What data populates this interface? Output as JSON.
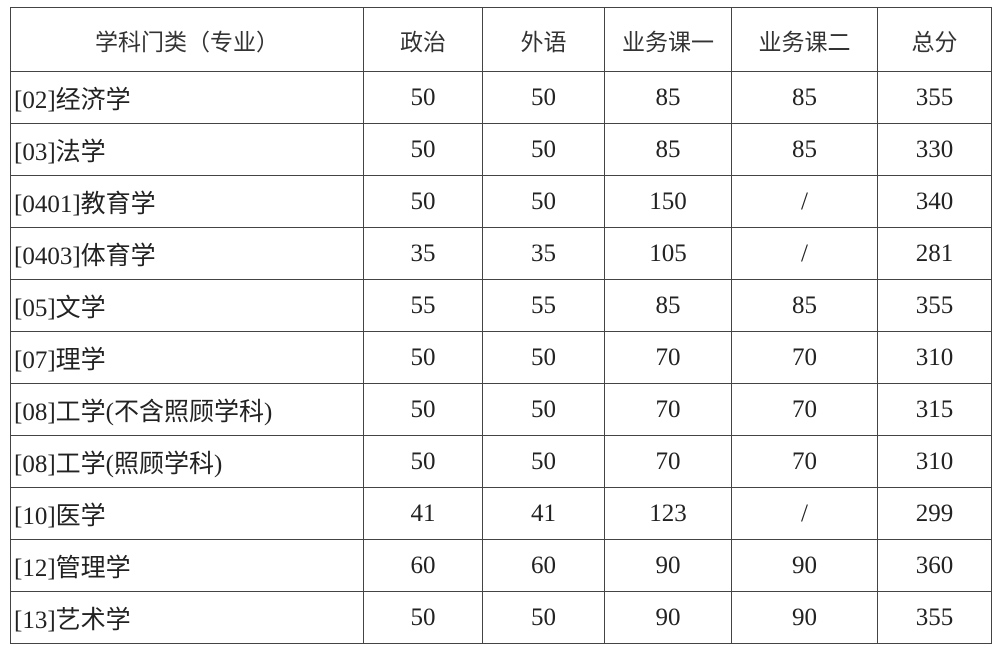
{
  "headers": [
    "学科门类（专业）",
    "政治",
    "外语",
    "业务课一",
    "业务课二",
    "总分"
  ],
  "rows": [
    {
      "name": "[02]经济学",
      "politics": "50",
      "foreign": "50",
      "course1": "85",
      "course2": "85",
      "total": "355"
    },
    {
      "name": "[03]法学",
      "politics": "50",
      "foreign": "50",
      "course1": "85",
      "course2": "85",
      "total": "330"
    },
    {
      "name": "[0401]教育学",
      "politics": "50",
      "foreign": "50",
      "course1": "150",
      "course2": "/",
      "total": "340"
    },
    {
      "name": "[0403]体育学",
      "politics": "35",
      "foreign": "35",
      "course1": "105",
      "course2": "/",
      "total": "281"
    },
    {
      "name": "[05]文学",
      "politics": "55",
      "foreign": "55",
      "course1": "85",
      "course2": "85",
      "total": "355"
    },
    {
      "name": "[07]理学",
      "politics": "50",
      "foreign": "50",
      "course1": "70",
      "course2": "70",
      "total": "310"
    },
    {
      "name": "[08]工学(不含照顾学科)",
      "politics": "50",
      "foreign": "50",
      "course1": "70",
      "course2": "70",
      "total": "315"
    },
    {
      "name": "[08]工学(照顾学科)",
      "politics": "50",
      "foreign": "50",
      "course1": "70",
      "course2": "70",
      "total": "310"
    },
    {
      "name": "[10]医学",
      "politics": "41",
      "foreign": "41",
      "course1": "123",
      "course2": "/",
      "total": "299"
    },
    {
      "name": "[12]管理学",
      "politics": "60",
      "foreign": "60",
      "course1": "90",
      "course2": "90",
      "total": "360"
    },
    {
      "name": "[13]艺术学",
      "politics": "50",
      "foreign": "50",
      "course1": "90",
      "course2": "90",
      "total": "355"
    }
  ]
}
